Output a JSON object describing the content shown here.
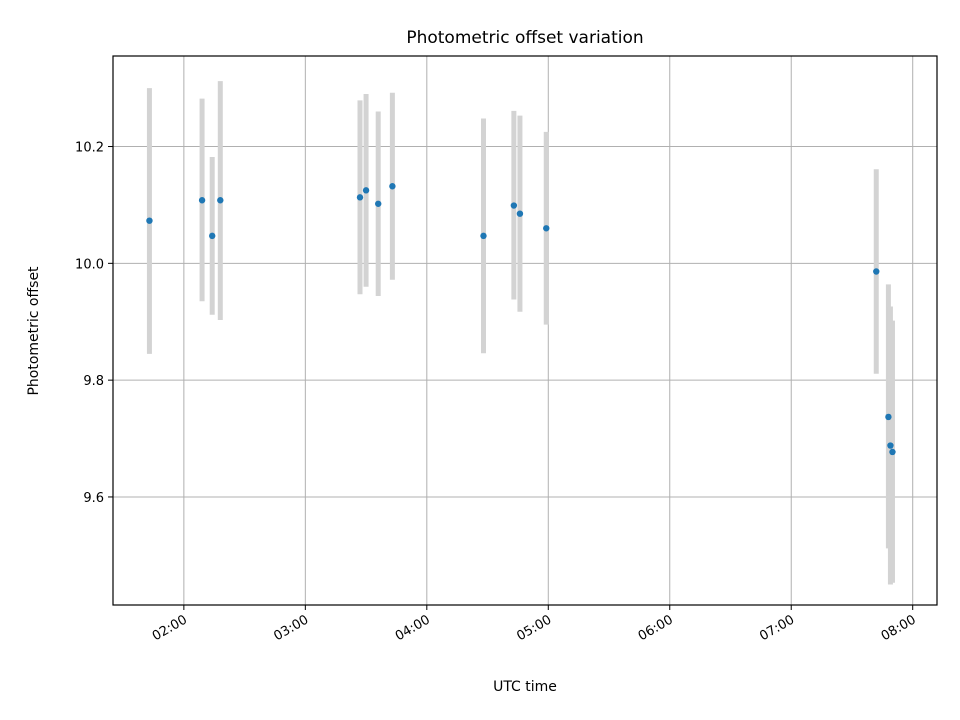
{
  "chart_data": {
    "type": "scatter",
    "title": "Photometric offset variation",
    "xlabel": "UTC time",
    "ylabel": "Photometric offset",
    "x_unit": "UTC hh:mm",
    "xlim": [
      "01:25",
      "08:12"
    ],
    "ylim": [
      9.415,
      10.355
    ],
    "xticks": [
      "02:00",
      "03:00",
      "04:00",
      "05:00",
      "06:00",
      "07:00",
      "08:00"
    ],
    "yticks": [
      "9.6",
      "9.8",
      "10.0",
      "10.2"
    ],
    "grid": true,
    "marker_color": "#1f77b4",
    "errorbar_color": "#d3d3d3",
    "points": [
      {
        "x": "01:43",
        "y": 10.073,
        "ylo": 9.845,
        "yhi": 10.3
      },
      {
        "x": "02:09",
        "y": 10.108,
        "ylo": 9.935,
        "yhi": 10.282
      },
      {
        "x": "02:14",
        "y": 10.047,
        "ylo": 9.912,
        "yhi": 10.182
      },
      {
        "x": "02:18",
        "y": 10.108,
        "ylo": 9.903,
        "yhi": 10.312
      },
      {
        "x": "03:27",
        "y": 10.113,
        "ylo": 9.947,
        "yhi": 10.279
      },
      {
        "x": "03:30",
        "y": 10.125,
        "ylo": 9.96,
        "yhi": 10.29
      },
      {
        "x": "03:36",
        "y": 10.102,
        "ylo": 9.944,
        "yhi": 10.26
      },
      {
        "x": "03:43",
        "y": 10.132,
        "ylo": 9.972,
        "yhi": 10.292
      },
      {
        "x": "04:28",
        "y": 10.047,
        "ylo": 9.846,
        "yhi": 10.248
      },
      {
        "x": "04:43",
        "y": 10.099,
        "ylo": 9.938,
        "yhi": 10.261
      },
      {
        "x": "04:46",
        "y": 10.085,
        "ylo": 9.917,
        "yhi": 10.253
      },
      {
        "x": "04:59",
        "y": 10.06,
        "ylo": 9.895,
        "yhi": 10.225
      },
      {
        "x": "07:42",
        "y": 9.986,
        "ylo": 9.811,
        "yhi": 10.161
      },
      {
        "x": "07:48",
        "y": 9.737,
        "ylo": 9.512,
        "yhi": 9.964
      },
      {
        "x": "07:49",
        "y": 9.688,
        "ylo": 9.45,
        "yhi": 9.926
      },
      {
        "x": "07:50",
        "y": 9.677,
        "ylo": 9.453,
        "yhi": 9.902
      }
    ]
  }
}
